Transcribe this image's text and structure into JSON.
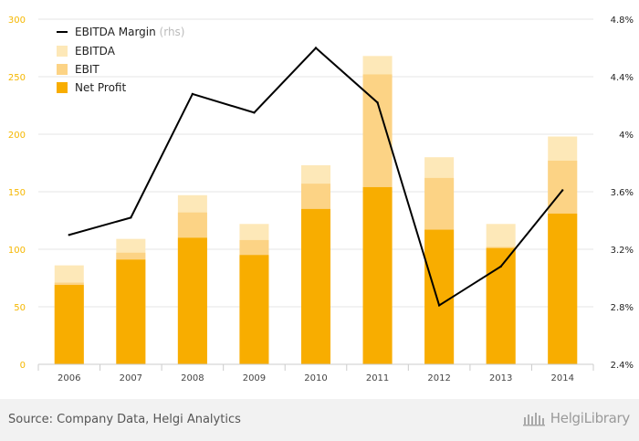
{
  "chart_data": {
    "type": "bar",
    "categories": [
      "2006",
      "2007",
      "2008",
      "2009",
      "2010",
      "2011",
      "2012",
      "2013",
      "2014"
    ],
    "series": [
      {
        "name": "EBITDA",
        "kind": "bar",
        "color": "#fde8b8",
        "values": [
          86,
          109,
          147,
          122,
          173,
          268,
          180,
          122,
          198
        ]
      },
      {
        "name": "EBIT",
        "kind": "bar",
        "color": "#fcd385",
        "values": [
          71,
          97,
          132,
          108,
          157,
          252,
          162,
          102,
          177
        ]
      },
      {
        "name": "Net Profit",
        "kind": "bar",
        "color": "#f8ad00",
        "values": [
          69,
          91,
          110,
          95,
          135,
          154,
          117,
          101,
          131
        ]
      },
      {
        "name": "EBITDA Margin",
        "suffix": "(rhs)",
        "kind": "line",
        "axis": "right",
        "color": "#000000",
        "values": [
          3.3,
          3.42,
          4.28,
          4.15,
          4.6,
          4.22,
          2.81,
          3.08,
          3.61
        ]
      }
    ],
    "left_axis": {
      "min": 0,
      "max": 300,
      "ticks": [
        "0",
        "50",
        "100",
        "150",
        "200",
        "250",
        "300"
      ]
    },
    "right_axis": {
      "min": 2.4,
      "max": 4.8,
      "ticks": [
        "2.4%",
        "2.8%",
        "3.2%",
        "3.6%",
        "4%",
        "4.4%",
        "4.8%"
      ]
    },
    "grid": true,
    "legend_position": "top-left"
  },
  "footer": {
    "source": "Source: Company Data, Helgi Analytics",
    "brand": "HelgiLibrary"
  }
}
